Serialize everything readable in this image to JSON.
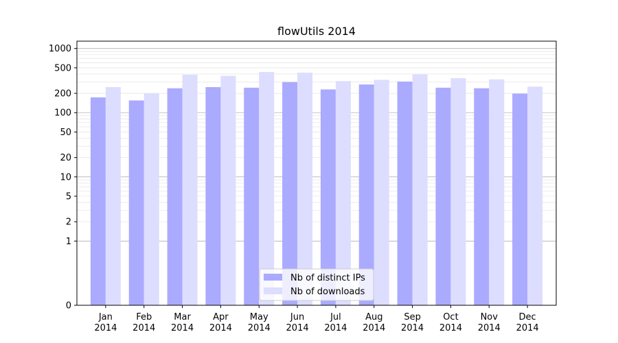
{
  "chart_data": {
    "type": "bar",
    "title": "flowUtils 2014",
    "categories": [
      "Jan\n2014",
      "Feb\n2014",
      "Mar\n2014",
      "Apr\n2014",
      "May\n2014",
      "Jun\n2014",
      "Jul\n2014",
      "Aug\n2014",
      "Sep\n2014",
      "Oct\n2014",
      "Nov\n2014",
      "Dec\n2014"
    ],
    "series": [
      {
        "name": "Nb of distinct IPs",
        "color": "#aaaaff",
        "values": [
          173,
          155,
          240,
          250,
          245,
          300,
          230,
          275,
          305,
          245,
          240,
          198
        ]
      },
      {
        "name": "Nb of downloads",
        "color": "#ddddff",
        "values": [
          250,
          198,
          390,
          375,
          430,
          420,
          310,
          325,
          395,
          345,
          330,
          255
        ]
      }
    ],
    "yscale": "symlog",
    "ylim": [
      0,
      1300
    ],
    "yticks": [
      0,
      1,
      2,
      5,
      10,
      20,
      50,
      100,
      200,
      500,
      1000
    ],
    "grid": true,
    "legend_position": "bottom-center",
    "xlabel": "",
    "ylabel": ""
  }
}
